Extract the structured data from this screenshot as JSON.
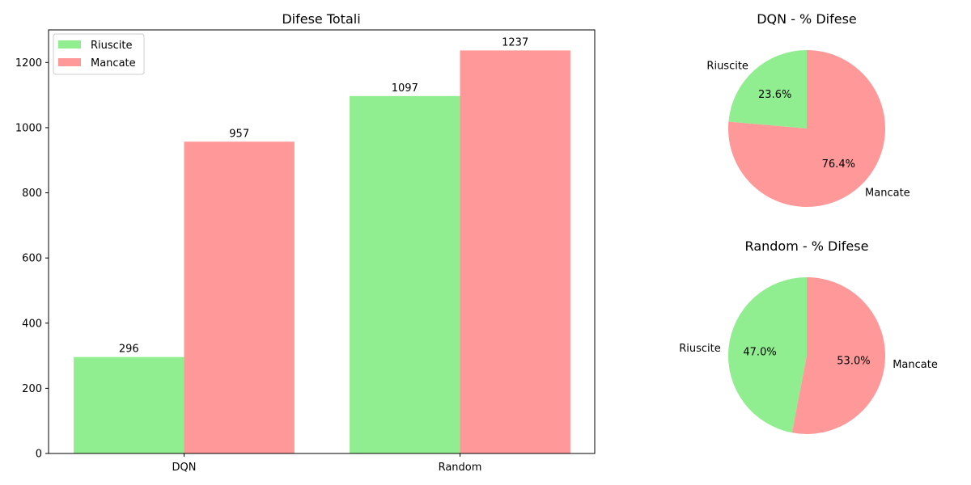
{
  "colors": {
    "riuscite": "#90ee90",
    "mancate": "#ff9999",
    "axis": "#000000",
    "background": "#ffffff"
  },
  "chart_data": [
    {
      "type": "bar",
      "title": "Difese Totali",
      "categories": [
        "DQN",
        "Random"
      ],
      "series": [
        {
          "name": "Riuscite",
          "values": [
            296,
            1097
          ]
        },
        {
          "name": "Mancate",
          "values": [
            957,
            1237
          ]
        }
      ],
      "ylim": [
        0,
        1300
      ],
      "yticks": [
        0,
        200,
        400,
        600,
        800,
        1000,
        1200
      ],
      "ytick_labels": [
        "0",
        "200",
        "400",
        "600",
        "800",
        "1000",
        "1200"
      ],
      "data_labels": [
        [
          "296",
          "1097"
        ],
        [
          "957",
          "1237"
        ]
      ],
      "legend": {
        "placement": "top-left",
        "entries": [
          "Riuscite",
          "Mancate"
        ]
      },
      "grid": false
    },
    {
      "type": "pie",
      "title": "DQN - % Difese",
      "labels": [
        "Riuscite",
        "Mancate"
      ],
      "values": [
        23.6,
        76.4
      ],
      "pct_labels": [
        "23.6%",
        "76.4%"
      ],
      "start_angle_deg": 90
    },
    {
      "type": "pie",
      "title": "Random - % Difese",
      "labels": [
        "Riuscite",
        "Mancate"
      ],
      "values": [
        47.0,
        53.0
      ],
      "pct_labels": [
        "47.0%",
        "53.0%"
      ],
      "start_angle_deg": 90
    }
  ]
}
